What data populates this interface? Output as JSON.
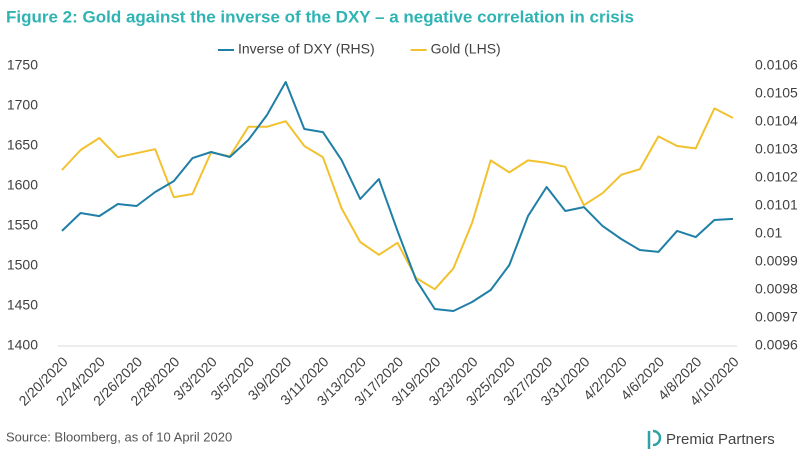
{
  "chart_data": {
    "type": "line",
    "title": "Figure 2: Gold against the inverse of the DXY – a negative correlation in crisis",
    "source": "Source: Bloomberg, as of 10 April 2020",
    "logo": "Premiα Partners",
    "categories": [
      "2/20/2020",
      null,
      "2/24/2020",
      null,
      "2/26/2020",
      null,
      "2/28/2020",
      null,
      "3/3/2020",
      null,
      "3/5/2020",
      null,
      "3/9/2020",
      null,
      "3/11/2020",
      null,
      "3/13/2020",
      null,
      "3/17/2020",
      null,
      "3/19/2020",
      null,
      "3/23/2020",
      null,
      "3/25/2020",
      null,
      "3/27/2020",
      null,
      "3/31/2020",
      null,
      "4/2/2020",
      null,
      "4/6/2020",
      null,
      "4/8/2020",
      null,
      "4/10/2020"
    ],
    "series": [
      {
        "name": "Inverse of DXY (RHS)",
        "color": "#1f7fa6",
        "axis": "y2",
        "values": [
          0.010011,
          0.010075,
          0.010064,
          0.010107,
          0.0101,
          0.01015,
          0.010189,
          0.010271,
          0.010293,
          0.010275,
          0.010336,
          0.010425,
          0.010543,
          0.010375,
          0.010364,
          0.010264,
          0.010125,
          0.010196,
          0.010011,
          0.009836,
          0.009732,
          0.009725,
          0.009757,
          0.0098,
          0.009889,
          0.010064,
          0.010168,
          0.010082,
          0.010096,
          0.010029,
          0.009982,
          0.009943,
          0.009936,
          0.010011,
          0.009989,
          0.01005,
          0.010054
        ]
      },
      {
        "name": "Gold (LHS)",
        "color": "#f2c12e",
        "values": [
          1620,
          1645,
          1660,
          1636,
          1641,
          1646,
          1586,
          1590,
          1642,
          1637,
          1674,
          1674,
          1681,
          1650,
          1636,
          1572,
          1530,
          1514,
          1529,
          1485,
          1471,
          1497,
          1554,
          1632,
          1617,
          1632,
          1629,
          1624,
          1576,
          1591,
          1614,
          1621,
          1662,
          1650,
          1647,
          1697,
          1685
        ]
      }
    ],
    "ylim": [
      1400,
      1750
    ],
    "yticks": [
      1400,
      1450,
      1500,
      1550,
      1600,
      1650,
      1700,
      1750
    ],
    "y2lim": [
      0.0096,
      0.0106
    ],
    "y2ticks": [
      0.0096,
      0.0097,
      0.0098,
      0.0099,
      0.01,
      0.0101,
      0.0102,
      0.0103,
      0.0104,
      0.0105,
      0.0106
    ],
    "legend": "top"
  }
}
